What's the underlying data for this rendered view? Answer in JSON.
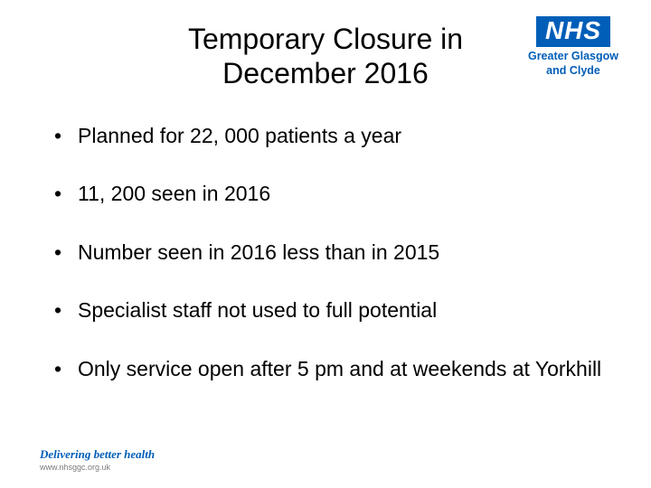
{
  "title_line1": "Temporary Closure in",
  "title_line2": "December 2016",
  "logo": {
    "text": "NHS",
    "subtitle_line1": "Greater Glasgow",
    "subtitle_line2": "and Clyde",
    "box_bg": "#005eb8",
    "box_fg": "#ffffff"
  },
  "bullets": [
    "Planned for 22, 000 patients a year",
    "11, 200 seen in 2016",
    "Number seen in 2016 less than in 2015",
    "Specialist staff not used to full potential",
    "Only service open after 5 pm and at weekends at Yorkhill"
  ],
  "footer": {
    "tagline": "Delivering better health",
    "url": "www.nhsggc.org.uk"
  },
  "colors": {
    "text": "#000000",
    "brand": "#005eb8",
    "url": "#7a7a7a",
    "background": "#ffffff"
  },
  "typography": {
    "title_fontsize": 32,
    "bullet_fontsize": 23,
    "logo_fontsize": 28,
    "logo_sub_fontsize": 12.5,
    "tagline_fontsize": 13,
    "url_fontsize": 9
  }
}
